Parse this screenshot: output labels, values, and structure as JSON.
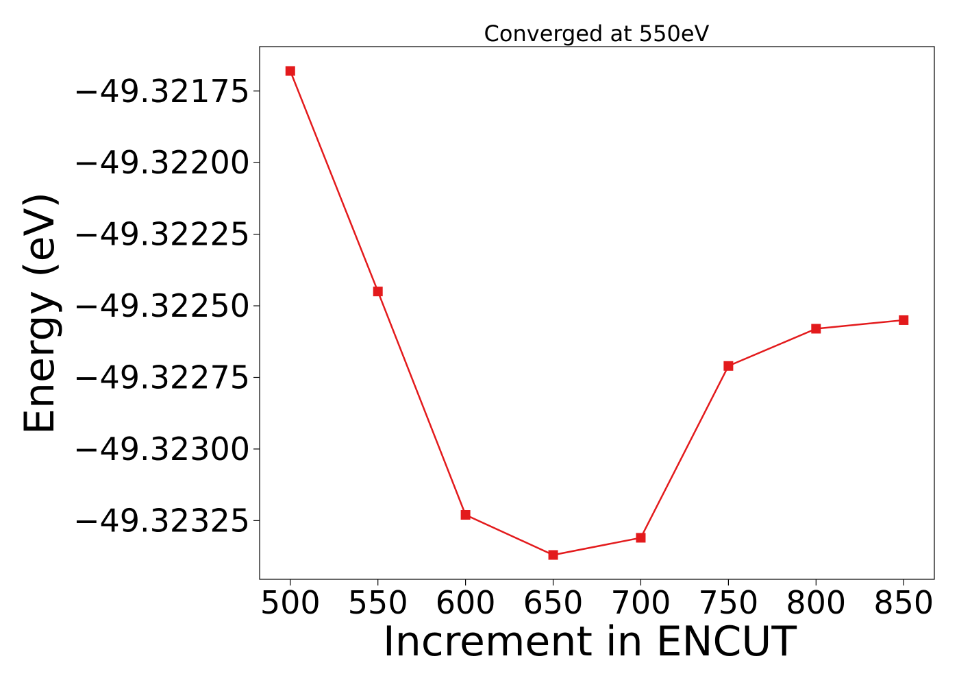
{
  "chart_data": {
    "type": "line",
    "title": "Converged at 550eV",
    "xlabel": "Increment in ENCUT",
    "ylabel": "Energy (eV)",
    "x": [
      500,
      550,
      600,
      650,
      700,
      750,
      800,
      850
    ],
    "series": [
      {
        "values": [
          -49.32168,
          -49.32245,
          -49.32323,
          -49.32337,
          -49.32331,
          -49.32271,
          -49.32258,
          -49.32255
        ],
        "color": "#e31a1c",
        "marker": "square"
      }
    ],
    "xticks": [
      500,
      550,
      600,
      650,
      700,
      750,
      800,
      850
    ],
    "xtick_labels": [
      "500",
      "550",
      "600",
      "650",
      "700",
      "750",
      "800",
      "850"
    ],
    "yticks": [
      -49.32175,
      -49.322,
      -49.32225,
      -49.3225,
      -49.32275,
      -49.323,
      -49.32325
    ],
    "ytick_labels": [
      "−49.32175",
      "−49.32200",
      "−49.32225",
      "−49.32250",
      "−49.32275",
      "−49.32300",
      "−49.32325"
    ],
    "xlim": [
      482.5,
      867.5
    ],
    "ylim": [
      -49.323455,
      -49.321595
    ],
    "grid": false,
    "legend": "none"
  }
}
